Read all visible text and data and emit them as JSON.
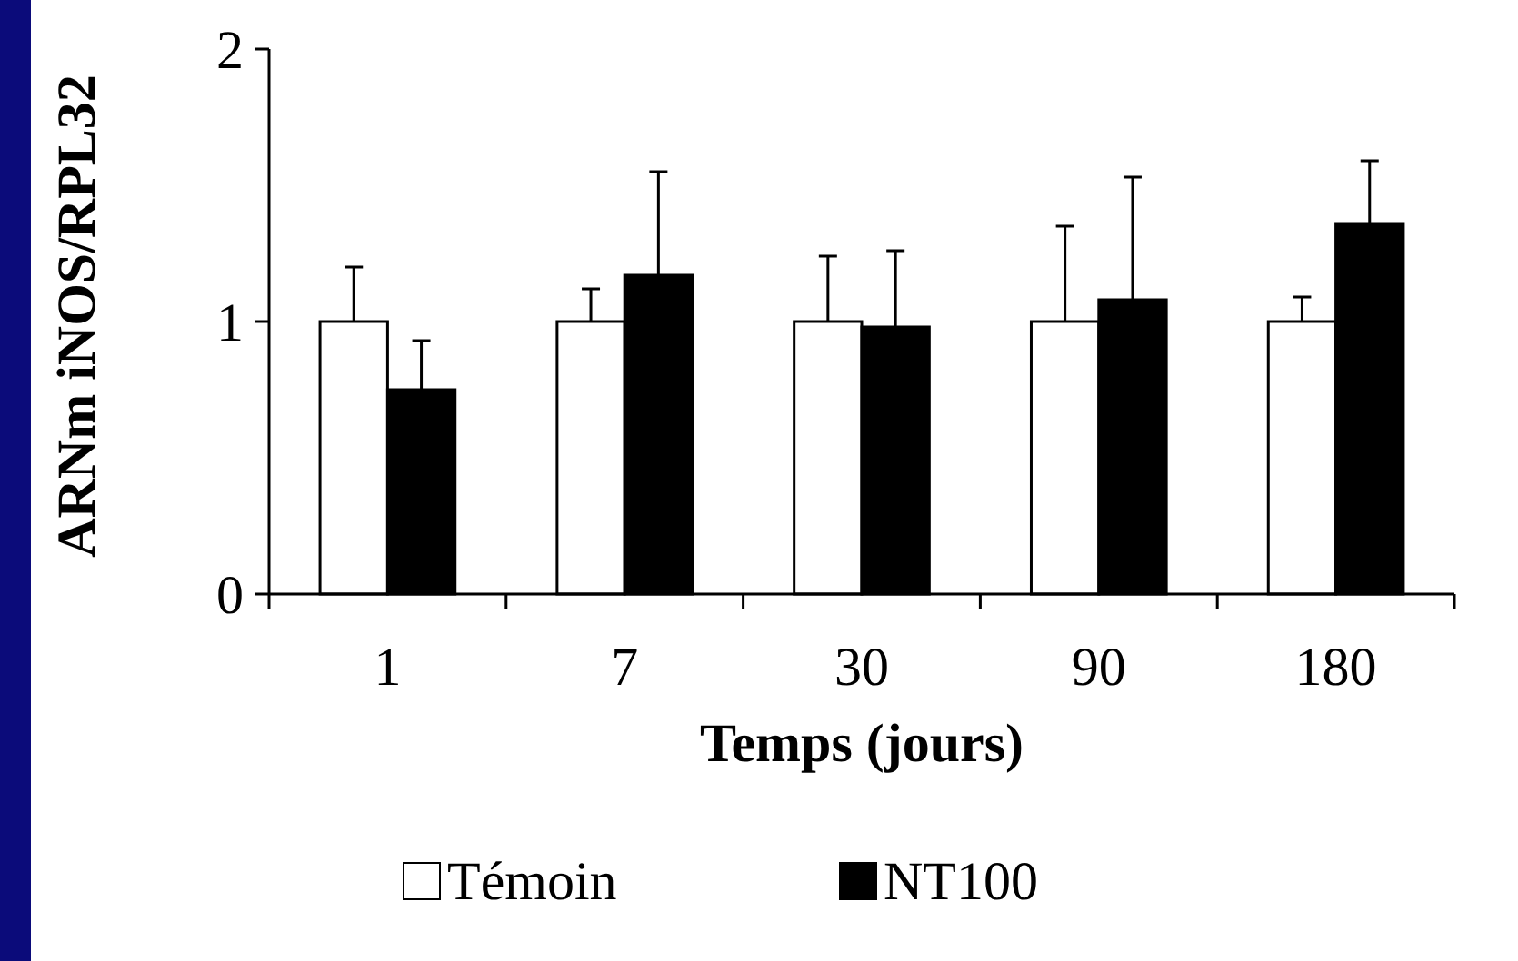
{
  "chart_data": {
    "type": "bar",
    "xlabel": "Temps (jours)",
    "ylabel": "ARNm iNOS/RPL32",
    "categories": [
      "1",
      "7",
      "30",
      "90",
      "180"
    ],
    "series": [
      {
        "name": "Témoin",
        "color": "#ffffff",
        "values": [
          1,
          1,
          1,
          1,
          1
        ],
        "errors": [
          0.2,
          0.12,
          0.24,
          0.35,
          0.09
        ]
      },
      {
        "name": "NT100",
        "color": "#000000",
        "values": [
          0.75,
          1.17,
          0.98,
          1.08,
          1.36
        ],
        "errors": [
          0.18,
          0.38,
          0.28,
          0.45,
          0.23
        ]
      }
    ],
    "ylim": [
      0,
      2
    ],
    "yticks": [
      0,
      1,
      2
    ],
    "grid": false,
    "legend": "bottom"
  }
}
